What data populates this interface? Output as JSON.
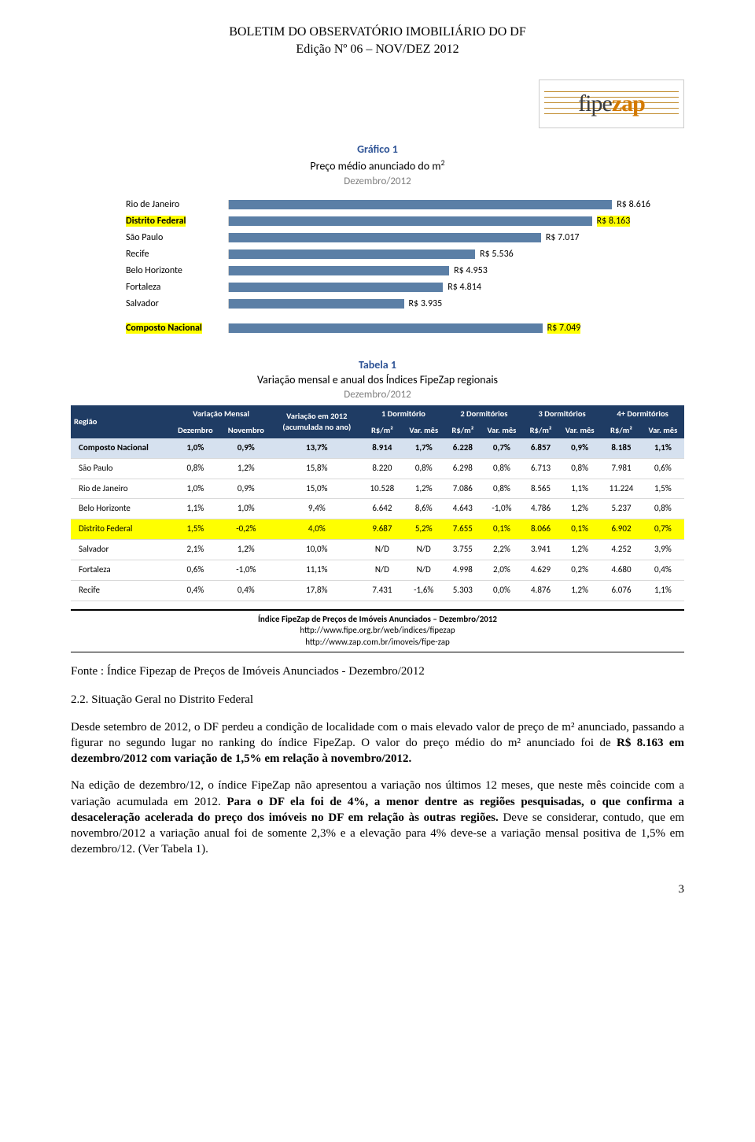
{
  "header": {
    "title": "BOLETIM  DO OBSERVATÓRIO IMOBILIÁRIO DO DF",
    "subtitle": "Edição Nº 06 – NOV/DEZ 2012"
  },
  "logo": {
    "fipe": "fipe",
    "zap": "zap"
  },
  "chart": {
    "type": "bar",
    "label": "Gráfico 1",
    "title_html": "Preço médio anunciado do m",
    "title_sup": "2",
    "subtitle": "Dezembro/2012",
    "max_value": 9000,
    "bar_color": "#5b7fa6",
    "axis_color": "#d0d0d0",
    "font_size": 12,
    "rows": [
      {
        "label": "Rio de Janeiro",
        "value": 8616,
        "value_label": "R$ 8.616",
        "highlight": false
      },
      {
        "label": "Distrito Federal",
        "value": 8163,
        "value_label": "R$ 8.163",
        "highlight": true
      },
      {
        "label": "São Paulo",
        "value": 7017,
        "value_label": "R$ 7.017",
        "highlight": false
      },
      {
        "label": "Recife",
        "value": 5536,
        "value_label": "R$ 5.536",
        "highlight": false
      },
      {
        "label": "Belo Horizonte",
        "value": 4953,
        "value_label": "R$ 4.953",
        "highlight": false
      },
      {
        "label": "Fortaleza",
        "value": 4814,
        "value_label": "R$ 4.814",
        "highlight": false
      },
      {
        "label": "Salvador",
        "value": 3935,
        "value_label": "R$ 3.935",
        "highlight": false
      },
      {
        "label": "Composto Nacional",
        "value": 7049,
        "value_label": "R$ 7.049",
        "highlight": true
      }
    ]
  },
  "table": {
    "type": "table",
    "label": "Tabela 1",
    "title": "Variação mensal e anual dos Índices FipeZap regionais",
    "subtitle": "Dezembro/2012",
    "header_bg": "#1f3c64",
    "header_fg": "#ffffff",
    "row_highlight_bg": "#ffff00",
    "row_blue_bg": "#d6e1ef",
    "border_color": "#d9d9d9",
    "font_size": 11,
    "group_headers": {
      "regiao": "Região",
      "var_mensal": "Variação Mensal",
      "var_2012": "Variação em 2012",
      "var_2012_sub": "(acumulada no ano)",
      "d1": "1 Dormitório",
      "d2": "2 Dormitórios",
      "d3": "3 Dormitórios",
      "d4": "4+ Dormitórios"
    },
    "sub_headers": {
      "dez": "Dezembro",
      "nov": "Novembro",
      "rsm2": "R$/m²",
      "varmes": "Var. mês"
    },
    "rows": [
      {
        "class": "row-blue",
        "cells": [
          "Composto Nacional",
          "1,0%",
          "0,9%",
          "13,7%",
          "8.914",
          "1,7%",
          "6.228",
          "0,7%",
          "6.857",
          "0,9%",
          "8.185",
          "1,1%"
        ]
      },
      {
        "class": "",
        "cells": [
          "São Paulo",
          "0,8%",
          "1,2%",
          "15,8%",
          "8.220",
          "0,8%",
          "6.298",
          "0,8%",
          "6.713",
          "0,8%",
          "7.981",
          "0,6%"
        ]
      },
      {
        "class": "",
        "cells": [
          "Rio de Janeiro",
          "1,0%",
          "0,9%",
          "15,0%",
          "10.528",
          "1,2%",
          "7.086",
          "0,8%",
          "8.565",
          "1,1%",
          "11.224",
          "1,5%"
        ]
      },
      {
        "class": "",
        "cells": [
          "Belo Horizonte",
          "1,1%",
          "1,0%",
          "9,4%",
          "6.642",
          "8,6%",
          "4.643",
          "-1,0%",
          "4.786",
          "1,2%",
          "5.237",
          "0,8%"
        ]
      },
      {
        "class": "row-hl",
        "cells": [
          "Distrito Federal",
          "1,5%",
          "-0,2%",
          "4,0%",
          "9.687",
          "5,2%",
          "7.655",
          "0,1%",
          "8.066",
          "0,1%",
          "6.902",
          "0,7%"
        ]
      },
      {
        "class": "",
        "cells": [
          "Salvador",
          "2,1%",
          "1,2%",
          "10,0%",
          "N/D",
          "N/D",
          "3.755",
          "2,2%",
          "3.941",
          "1,2%",
          "4.252",
          "3,9%"
        ]
      },
      {
        "class": "",
        "cells": [
          "Fortaleza",
          "0,6%",
          "-1,0%",
          "11,1%",
          "N/D",
          "N/D",
          "4.998",
          "2,0%",
          "4.629",
          "0,2%",
          "4.680",
          "0,4%"
        ]
      },
      {
        "class": "",
        "cells": [
          "Recife",
          "0,4%",
          "0,4%",
          "17,8%",
          "7.431",
          "-1,6%",
          "5.303",
          "0,0%",
          "4.876",
          "1,2%",
          "6.076",
          "1,1%"
        ]
      }
    ]
  },
  "src": {
    "l1": "Índice FipeZap de Preços de Imóveis Anunciados – Dezembro/2012",
    "l2": "http://www.fipe.org.br/web/indices/fipezap",
    "l3": "http://www.zap.com.br/imoveis/fipe-zap"
  },
  "fonte": "Fonte : Índice Fipezap de Preços de Imóveis Anunciados - Dezembro/2012",
  "section": {
    "heading": "2.2. Situação Geral no Distrito Federal",
    "p1_a": "Desde setembro de 2012, o DF perdeu a condição de localidade com o mais elevado valor de preço de m² anunciado, passando a figurar no segundo lugar no ranking do índice FipeZap. O valor do preço médio do m² anunciado foi de ",
    "p1_b": "R$ 8.163 em dezembro/2012 com variação de 1,5% em relação à novembro/2012.",
    "p2_a": "Na edição de dezembro/12, o índice FipeZap não apresentou a variação nos últimos 12 meses, que neste mês coincide com a variação acumulada em 2012. ",
    "p2_b": "Para o DF ela foi de 4%, a menor dentre as regiões pesquisadas, o que confirma a desaceleração acelerada do preço dos imóveis no DF em relação às outras regiões.",
    "p2_c": " Deve se considerar, contudo, que em novembro/2012 a variação anual foi de somente 2,3% e a elevação para 4% deve-se a variação mensal positiva de 1,5% em dezembro/12. (Ver Tabela 1)."
  },
  "page_number": "3"
}
